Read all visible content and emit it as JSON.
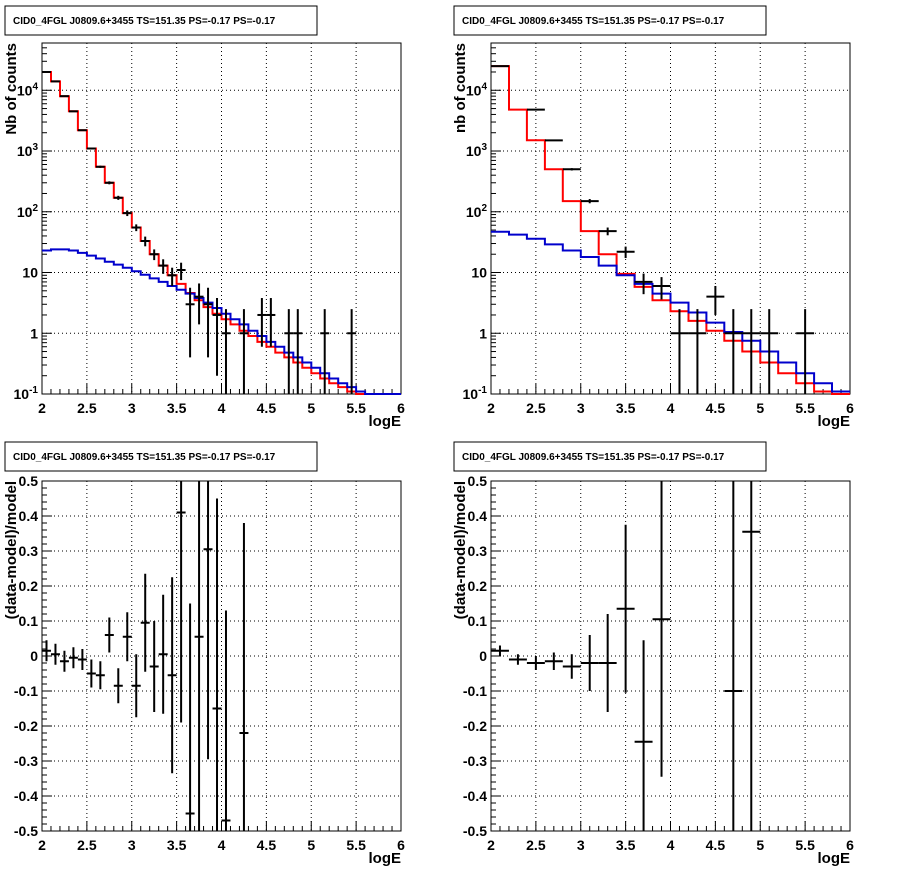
{
  "colors": {
    "data": "#000000",
    "total_model": "#ff0000",
    "component_model": "#0000cc",
    "grid": "#000000"
  },
  "chart_data": [
    {
      "id": "counts-left",
      "type": "line",
      "title": "CID0_4FGL J0809.6+3455 TS=151.35 PS=-0.17 PS=-0.17",
      "xlabel": "logE",
      "ylabel": "Nb of counts",
      "xlim": [
        2,
        6
      ],
      "ylim": [
        0.1,
        60000
      ],
      "yscale": "log",
      "grid": true,
      "x_ticks": [
        "2",
        "2.5",
        "3",
        "3.5",
        "4",
        "4.5",
        "5",
        "5.5",
        "6"
      ],
      "y_tick_values": [
        0.1,
        1,
        10,
        100,
        1000,
        10000
      ],
      "y_ticks": [
        "10^-1",
        "1",
        "10",
        "10^2",
        "10^3",
        "10^4"
      ],
      "bin_edges": [
        2.0,
        2.1,
        2.2,
        2.3,
        2.4,
        2.5,
        2.6,
        2.7,
        2.8,
        2.9,
        3.0,
        3.1,
        3.2,
        3.3,
        3.4,
        3.5,
        3.6,
        3.7,
        3.8,
        3.9,
        4.0,
        4.1,
        4.2,
        4.3,
        4.4,
        4.5,
        4.6,
        4.7,
        4.8,
        4.9,
        5.0,
        5.1,
        5.2,
        5.3,
        5.4,
        5.5,
        5.6,
        5.7,
        5.8,
        5.9,
        6.0
      ],
      "series": [
        {
          "name": "model",
          "color": "#ff0000",
          "values": [
            20000,
            14000,
            8000,
            4500,
            2200,
            1100,
            550,
            300,
            170,
            95,
            55,
            33,
            20,
            13,
            9,
            6.5,
            4.6,
            3.5,
            2.7,
            2.1,
            1.7,
            1.4,
            1.1,
            0.9,
            0.72,
            0.6,
            0.48,
            0.4,
            0.33,
            0.27,
            0.22,
            0.18,
            0.15,
            0.13,
            0.11,
            0.1,
            0.1,
            0.1,
            0.1,
            0.1
          ]
        },
        {
          "name": "component",
          "color": "#0000cc",
          "values": [
            23,
            24,
            24,
            23,
            21,
            19,
            17,
            15,
            13.5,
            12,
            10.5,
            9.2,
            8,
            7,
            6,
            5.2,
            4.5,
            3.8,
            3.2,
            2.6,
            2.1,
            1.7,
            1.4,
            1.1,
            0.9,
            0.72,
            0.6,
            0.48,
            0.4,
            0.33,
            0.27,
            0.22,
            0.18,
            0.15,
            0.13,
            0.11,
            0.1,
            0.1,
            0.1,
            0.1
          ]
        }
      ],
      "data_points": {
        "x": [
          2.05,
          2.15,
          2.25,
          2.35,
          2.45,
          2.55,
          2.65,
          2.75,
          2.85,
          2.95,
          3.05,
          3.15,
          3.25,
          3.35,
          3.45,
          3.55,
          3.65,
          3.75,
          3.85,
          3.95,
          4.05,
          4.25,
          4.45,
          4.55,
          4.75,
          4.85,
          5.15,
          5.45
        ],
        "y": [
          20000,
          14000,
          8000,
          4500,
          2200,
          1100,
          550,
          300,
          170,
          95,
          55,
          33,
          20,
          13,
          9,
          11,
          3,
          4,
          3,
          2,
          1,
          1,
          2,
          2,
          1,
          1,
          1,
          1
        ],
        "yerr_low": [
          140,
          120,
          90,
          67,
          47,
          33,
          23,
          17,
          13,
          10,
          7,
          6,
          4,
          3.5,
          3,
          3.5,
          2.6,
          2.6,
          2.6,
          1.8,
          0.99,
          0.99,
          1.4,
          1.4,
          0.99,
          0.99,
          0.99,
          0.99
        ],
        "yerr_high": [
          140,
          120,
          90,
          67,
          47,
          33,
          23,
          17,
          13,
          10,
          7,
          6,
          4,
          3.5,
          3,
          3.5,
          2.6,
          2.6,
          2.6,
          1.8,
          1.5,
          1.5,
          1.8,
          1.8,
          1.5,
          1.5,
          1.5,
          1.5
        ],
        "xerr": 0.05
      }
    },
    {
      "id": "counts-right",
      "type": "line",
      "title": "CID0_4FGL J0809.6+3455 TS=151.35 PS=-0.17 PS=-0.17",
      "xlabel": "logE",
      "ylabel": "nb of counts",
      "xlim": [
        2,
        6
      ],
      "ylim": [
        0.1,
        60000
      ],
      "yscale": "log",
      "grid": true,
      "x_ticks": [
        "2",
        "2.5",
        "3",
        "3.5",
        "4",
        "4.5",
        "5",
        "5.5",
        "6"
      ],
      "y_tick_values": [
        0.1,
        1,
        10,
        100,
        1000,
        10000
      ],
      "y_ticks": [
        "10^-1",
        "1",
        "10",
        "10^2",
        "10^3",
        "10^4"
      ],
      "bin_edges": [
        2.0,
        2.2,
        2.4,
        2.6,
        2.8,
        3.0,
        3.2,
        3.4,
        3.6,
        3.8,
        4.0,
        4.2,
        4.4,
        4.6,
        4.8,
        5.0,
        5.2,
        5.4,
        5.6,
        5.8,
        6.0
      ],
      "series": [
        {
          "name": "model",
          "color": "#ff0000",
          "values": [
            25000,
            4800,
            1500,
            500,
            150,
            48,
            20,
            9.5,
            5.8,
            3.5,
            2.3,
            1.6,
            1.1,
            0.75,
            0.5,
            0.33,
            0.22,
            0.15,
            0.11,
            0.1
          ]
        },
        {
          "name": "component",
          "color": "#0000cc",
          "values": [
            47,
            42,
            36,
            29,
            23,
            18,
            13,
            9,
            6.5,
            4.5,
            3.2,
            2.2,
            1.5,
            1.05,
            0.75,
            0.5,
            0.33,
            0.22,
            0.15,
            0.11
          ]
        }
      ],
      "data_points": {
        "x": [
          2.1,
          2.5,
          2.7,
          2.9,
          3.1,
          3.3,
          3.5,
          3.7,
          3.9,
          4.1,
          4.3,
          4.5,
          4.7,
          4.9,
          5.1,
          5.5
        ],
        "y": [
          25000,
          4800,
          1500,
          500,
          150,
          48,
          22,
          7,
          6,
          1,
          1,
          4,
          1,
          1,
          1,
          1
        ],
        "yerr_low": [
          160,
          70,
          39,
          22,
          12,
          7,
          4.7,
          2.6,
          2.4,
          0.99,
          0.99,
          2,
          0.99,
          0.99,
          0.99,
          0.99
        ],
        "yerr_high": [
          160,
          70,
          39,
          22,
          12,
          7,
          4.7,
          2.6,
          2.4,
          1.5,
          1.5,
          2,
          1.5,
          1.5,
          1.5,
          1.5
        ],
        "xerr": 0.1
      }
    },
    {
      "id": "residual-left",
      "type": "scatter",
      "title": "CID0_4FGL J0809.6+3455 TS=151.35 PS=-0.17 PS=-0.17",
      "xlabel": "logE",
      "ylabel": "(data-model)/model",
      "xlim": [
        2,
        6
      ],
      "ylim": [
        -0.5,
        0.5
      ],
      "yscale": "linear",
      "grid": true,
      "x_ticks": [
        "2",
        "2.5",
        "3",
        "3.5",
        "4",
        "4.5",
        "5",
        "5.5",
        "6"
      ],
      "y_tick_values": [
        -0.5,
        -0.4,
        -0.3,
        -0.2,
        -0.1,
        0,
        0.1,
        0.2,
        0.3,
        0.4,
        0.5
      ],
      "y_ticks": [
        "-0.5",
        "-0.4",
        "-0.3",
        "-0.2",
        "-0.1",
        "0",
        "0.1",
        "0.2",
        "0.3",
        "0.4",
        "0.5"
      ],
      "data_points": {
        "x": [
          2.05,
          2.15,
          2.25,
          2.35,
          2.45,
          2.55,
          2.65,
          2.75,
          2.85,
          2.95,
          3.05,
          3.15,
          3.25,
          3.35,
          3.45,
          3.55,
          3.65,
          3.75,
          3.85,
          3.95,
          4.05,
          4.25
        ],
        "y": [
          0.015,
          0.005,
          -0.015,
          -0.005,
          -0.01,
          -0.05,
          -0.055,
          0.06,
          -0.085,
          0.055,
          -0.085,
          0.095,
          -0.03,
          0.005,
          -0.055,
          0.41,
          -0.45,
          0.055,
          0.305,
          -0.15,
          -0.47,
          -0.22
        ],
        "yerr": [
          0.03,
          0.03,
          0.03,
          0.03,
          0.03,
          0.04,
          0.04,
          0.05,
          0.05,
          0.07,
          0.09,
          0.14,
          0.13,
          0.17,
          0.28,
          0.6,
          0.6,
          0.6,
          0.6,
          0.6,
          0.6,
          0.6
        ],
        "xerr": 0.05
      }
    },
    {
      "id": "residual-right",
      "type": "scatter",
      "title": "CID0_4FGL J0809.6+3455 TS=151.35 PS=-0.17 PS=-0.17",
      "xlabel": "logE",
      "ylabel": "(data-model)/model",
      "xlim": [
        2,
        6
      ],
      "ylim": [
        -0.5,
        0.5
      ],
      "yscale": "linear",
      "grid": true,
      "x_ticks": [
        "2",
        "2.5",
        "3",
        "3.5",
        "4",
        "4.5",
        "5",
        "5.5",
        "6"
      ],
      "y_tick_values": [
        -0.5,
        -0.4,
        -0.3,
        -0.2,
        -0.1,
        0,
        0.1,
        0.2,
        0.3,
        0.4,
        0.5
      ],
      "y_ticks": [
        "-0.5",
        "-0.4",
        "-0.3",
        "-0.2",
        "-0.1",
        "0",
        "0.1",
        "0.2",
        "0.3",
        "0.4",
        "0.5"
      ],
      "data_points": {
        "x": [
          2.1,
          2.3,
          2.5,
          2.7,
          2.9,
          3.1,
          3.3,
          3.5,
          3.7,
          3.9,
          4.7,
          4.9
        ],
        "y": [
          0.015,
          -0.01,
          -0.02,
          -0.015,
          -0.03,
          -0.02,
          -0.02,
          0.135,
          -0.245,
          0.105,
          -0.1,
          0.355
        ],
        "yerr": [
          0.015,
          0.015,
          0.02,
          0.025,
          0.035,
          0.08,
          0.14,
          0.24,
          0.29,
          0.45,
          0.9,
          0.9
        ],
        "xerr": 0.1
      }
    }
  ]
}
